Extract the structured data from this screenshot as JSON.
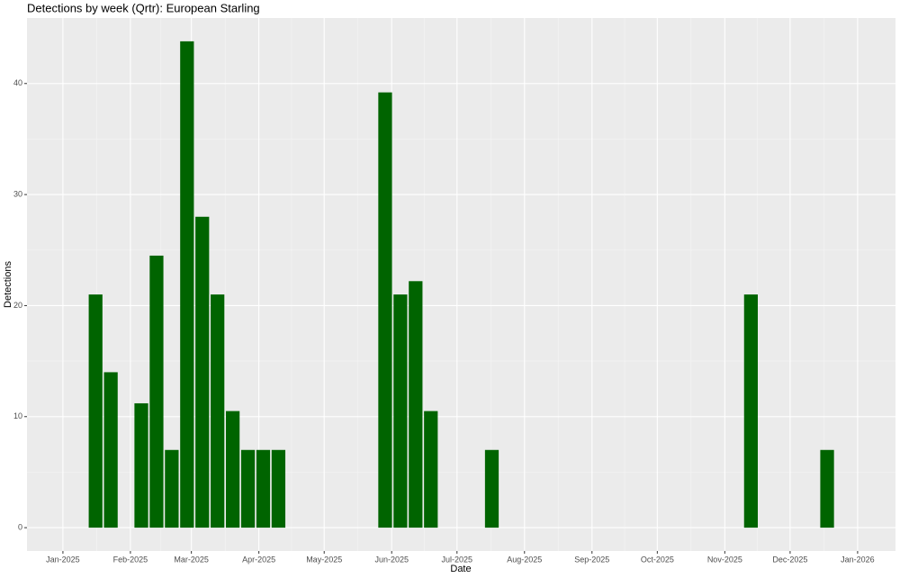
{
  "chart_data": {
    "type": "bar",
    "title": "Detections by week (Qrtr): European Starling",
    "x_label": "Date",
    "y_label": "Detections",
    "x": [
      15,
      22,
      36,
      43,
      50,
      57,
      64,
      71,
      78,
      85,
      92,
      99,
      148,
      155,
      162,
      169,
      197,
      316,
      351
    ],
    "values": [
      21,
      14,
      11.2,
      24.5,
      7,
      43.8,
      28,
      21,
      10.5,
      7,
      7,
      7,
      39.2,
      21,
      22.2,
      10.5,
      7,
      21,
      7
    ],
    "color": "#006400",
    "xlim": [
      -16.5,
      382.4
    ],
    "xticks": [
      {
        "value": 0,
        "label": "Jan-2025"
      },
      {
        "value": 31,
        "label": "Feb-2025"
      },
      {
        "value": 59,
        "label": "Mar-2025"
      },
      {
        "value": 90,
        "label": "Apr-2025"
      },
      {
        "value": 120,
        "label": "May-2025"
      },
      {
        "value": 151,
        "label": "Jun-2025"
      },
      {
        "value": 181,
        "label": "Jul-2025"
      },
      {
        "value": 212,
        "label": "Aug-2025"
      },
      {
        "value": 243,
        "label": "Sep-2025"
      },
      {
        "value": 273,
        "label": "Oct-2025"
      },
      {
        "value": 304,
        "label": "Nov-2025"
      },
      {
        "value": 334,
        "label": "Dec-2025"
      },
      {
        "value": 365,
        "label": "Jan-2026"
      }
    ],
    "ylim": [
      -2.1,
      45.9
    ],
    "yticks": [
      0,
      10,
      20,
      30,
      40
    ],
    "grid": true
  }
}
